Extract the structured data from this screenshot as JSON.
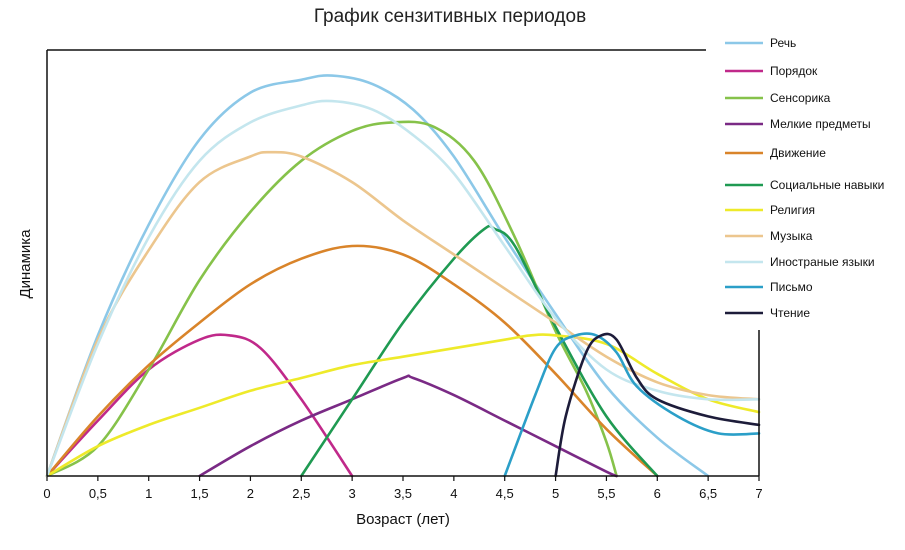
{
  "chart_data": {
    "type": "line",
    "title": "График сензитивных периодов",
    "xlabel": "Возраст (лет)",
    "ylabel": "Динамика",
    "xlim": [
      0,
      7
    ],
    "ylim": [
      0,
      10
    ],
    "x_ticks": [
      "0",
      "0,5",
      "1",
      "1,5",
      "2",
      "2,5",
      "3",
      "3,5",
      "4",
      "4,5",
      "5",
      "5,5",
      "6",
      "6,5",
      "7"
    ],
    "grid": false,
    "legend_position": "right",
    "series": [
      {
        "name": "Речь",
        "color": "#8cc8e8",
        "points": [
          [
            0,
            0
          ],
          [
            0.5,
            3.3
          ],
          [
            1,
            5.9
          ],
          [
            1.5,
            7.9
          ],
          [
            2,
            9.0
          ],
          [
            2.5,
            9.3
          ],
          [
            2.8,
            9.4
          ],
          [
            3.2,
            9.2
          ],
          [
            3.6,
            8.6
          ],
          [
            4,
            7.5
          ],
          [
            4.5,
            5.6
          ],
          [
            5,
            3.8
          ],
          [
            5.5,
            2.1
          ],
          [
            6,
            0.9
          ],
          [
            6.5,
            0
          ]
        ]
      },
      {
        "name": "Порядок",
        "color": "#c0298a",
        "points": [
          [
            0,
            0
          ],
          [
            0.5,
            1.3
          ],
          [
            1,
            2.5
          ],
          [
            1.5,
            3.2
          ],
          [
            1.8,
            3.3
          ],
          [
            2.1,
            3.0
          ],
          [
            2.5,
            1.8
          ],
          [
            3,
            0
          ]
        ]
      },
      {
        "name": "Сенсорика",
        "color": "#86c24a",
        "points": [
          [
            0,
            0
          ],
          [
            0.5,
            0.7
          ],
          [
            1,
            2.5
          ],
          [
            1.5,
            4.6
          ],
          [
            2,
            6.2
          ],
          [
            2.5,
            7.4
          ],
          [
            3,
            8.1
          ],
          [
            3.4,
            8.3
          ],
          [
            3.8,
            8.2
          ],
          [
            4.2,
            7.4
          ],
          [
            4.6,
            5.6
          ],
          [
            5,
            3.4
          ],
          [
            5.3,
            2.0
          ],
          [
            5.5,
            0.8
          ],
          [
            5.6,
            0
          ]
        ]
      },
      {
        "name": "Мелкие предметы",
        "color": "#7a2a85",
        "points": [
          [
            1.5,
            0
          ],
          [
            2,
            0.7
          ],
          [
            2.5,
            1.3
          ],
          [
            3,
            1.8
          ],
          [
            3.5,
            2.3
          ],
          [
            3.6,
            2.3
          ],
          [
            4,
            1.9
          ],
          [
            4.5,
            1.3
          ],
          [
            5,
            0.7
          ],
          [
            5.5,
            0.1
          ],
          [
            5.6,
            0
          ]
        ]
      },
      {
        "name": "Движение",
        "color": "#d9842a",
        "points": [
          [
            0,
            0
          ],
          [
            0.5,
            1.4
          ],
          [
            1,
            2.6
          ],
          [
            1.5,
            3.6
          ],
          [
            2,
            4.5
          ],
          [
            2.5,
            5.1
          ],
          [
            3,
            5.4
          ],
          [
            3.5,
            5.2
          ],
          [
            4,
            4.5
          ],
          [
            4.5,
            3.6
          ],
          [
            5,
            2.4
          ],
          [
            5.5,
            1.1
          ],
          [
            6,
            0
          ]
        ]
      },
      {
        "name": "Социальные навыки",
        "color": "#1f9a52",
        "points": [
          [
            2.5,
            0
          ],
          [
            3,
            1.8
          ],
          [
            3.5,
            3.6
          ],
          [
            4,
            5.1
          ],
          [
            4.3,
            5.8
          ],
          [
            4.4,
            5.8
          ],
          [
            4.6,
            5.4
          ],
          [
            5,
            3.5
          ],
          [
            5.5,
            1.4
          ],
          [
            6,
            0
          ]
        ]
      },
      {
        "name": "Религия",
        "color": "#eeea2a",
        "points": [
          [
            0,
            0
          ],
          [
            0.5,
            0.7
          ],
          [
            1,
            1.2
          ],
          [
            1.5,
            1.6
          ],
          [
            2,
            2.0
          ],
          [
            2.5,
            2.3
          ],
          [
            3,
            2.6
          ],
          [
            3.5,
            2.8
          ],
          [
            4,
            3.0
          ],
          [
            4.5,
            3.2
          ],
          [
            4.75,
            3.3
          ],
          [
            5,
            3.3
          ],
          [
            5.5,
            3.1
          ],
          [
            6,
            2.4
          ],
          [
            6.5,
            1.8
          ],
          [
            7,
            1.5
          ]
        ]
      },
      {
        "name": "Музыка",
        "color": "#ecc68e",
        "points": [
          [
            0,
            0
          ],
          [
            0.5,
            3.2
          ],
          [
            1,
            5.3
          ],
          [
            1.5,
            6.9
          ],
          [
            2,
            7.5
          ],
          [
            2.2,
            7.6
          ],
          [
            2.5,
            7.5
          ],
          [
            3,
            6.9
          ],
          [
            3.5,
            6.0
          ],
          [
            4,
            5.2
          ],
          [
            4.5,
            4.4
          ],
          [
            5,
            3.6
          ],
          [
            5.5,
            2.8
          ],
          [
            6,
            2.2
          ],
          [
            6.5,
            1.9
          ],
          [
            7,
            1.8
          ]
        ]
      },
      {
        "name": "Иностраные языки",
        "color": "#c4e6ee",
        "points": [
          [
            0,
            0
          ],
          [
            0.5,
            3.1
          ],
          [
            1,
            5.6
          ],
          [
            1.5,
            7.4
          ],
          [
            2,
            8.3
          ],
          [
            2.5,
            8.7
          ],
          [
            2.8,
            8.8
          ],
          [
            3.2,
            8.6
          ],
          [
            3.6,
            8.0
          ],
          [
            4,
            7.1
          ],
          [
            4.5,
            5.4
          ],
          [
            5,
            3.7
          ],
          [
            5.5,
            2.5
          ],
          [
            6,
            2.0
          ],
          [
            6.5,
            1.8
          ],
          [
            7,
            1.8
          ]
        ]
      },
      {
        "name": "Письмо",
        "color": "#2b9fc8",
        "points": [
          [
            4.5,
            0
          ],
          [
            4.8,
            1.9
          ],
          [
            5,
            3.0
          ],
          [
            5.2,
            3.3
          ],
          [
            5.4,
            3.3
          ],
          [
            5.6,
            2.9
          ],
          [
            5.8,
            2.1
          ],
          [
            6.2,
            1.4
          ],
          [
            6.6,
            1.0
          ],
          [
            7,
            1.0
          ]
        ]
      },
      {
        "name": "Чтение",
        "color": "#1d1c3a",
        "points": [
          [
            5,
            0
          ],
          [
            5.1,
            1.4
          ],
          [
            5.3,
            2.9
          ],
          [
            5.45,
            3.3
          ],
          [
            5.6,
            3.2
          ],
          [
            5.8,
            2.3
          ],
          [
            6,
            1.8
          ],
          [
            6.5,
            1.4
          ],
          [
            7,
            1.2
          ]
        ]
      }
    ]
  }
}
